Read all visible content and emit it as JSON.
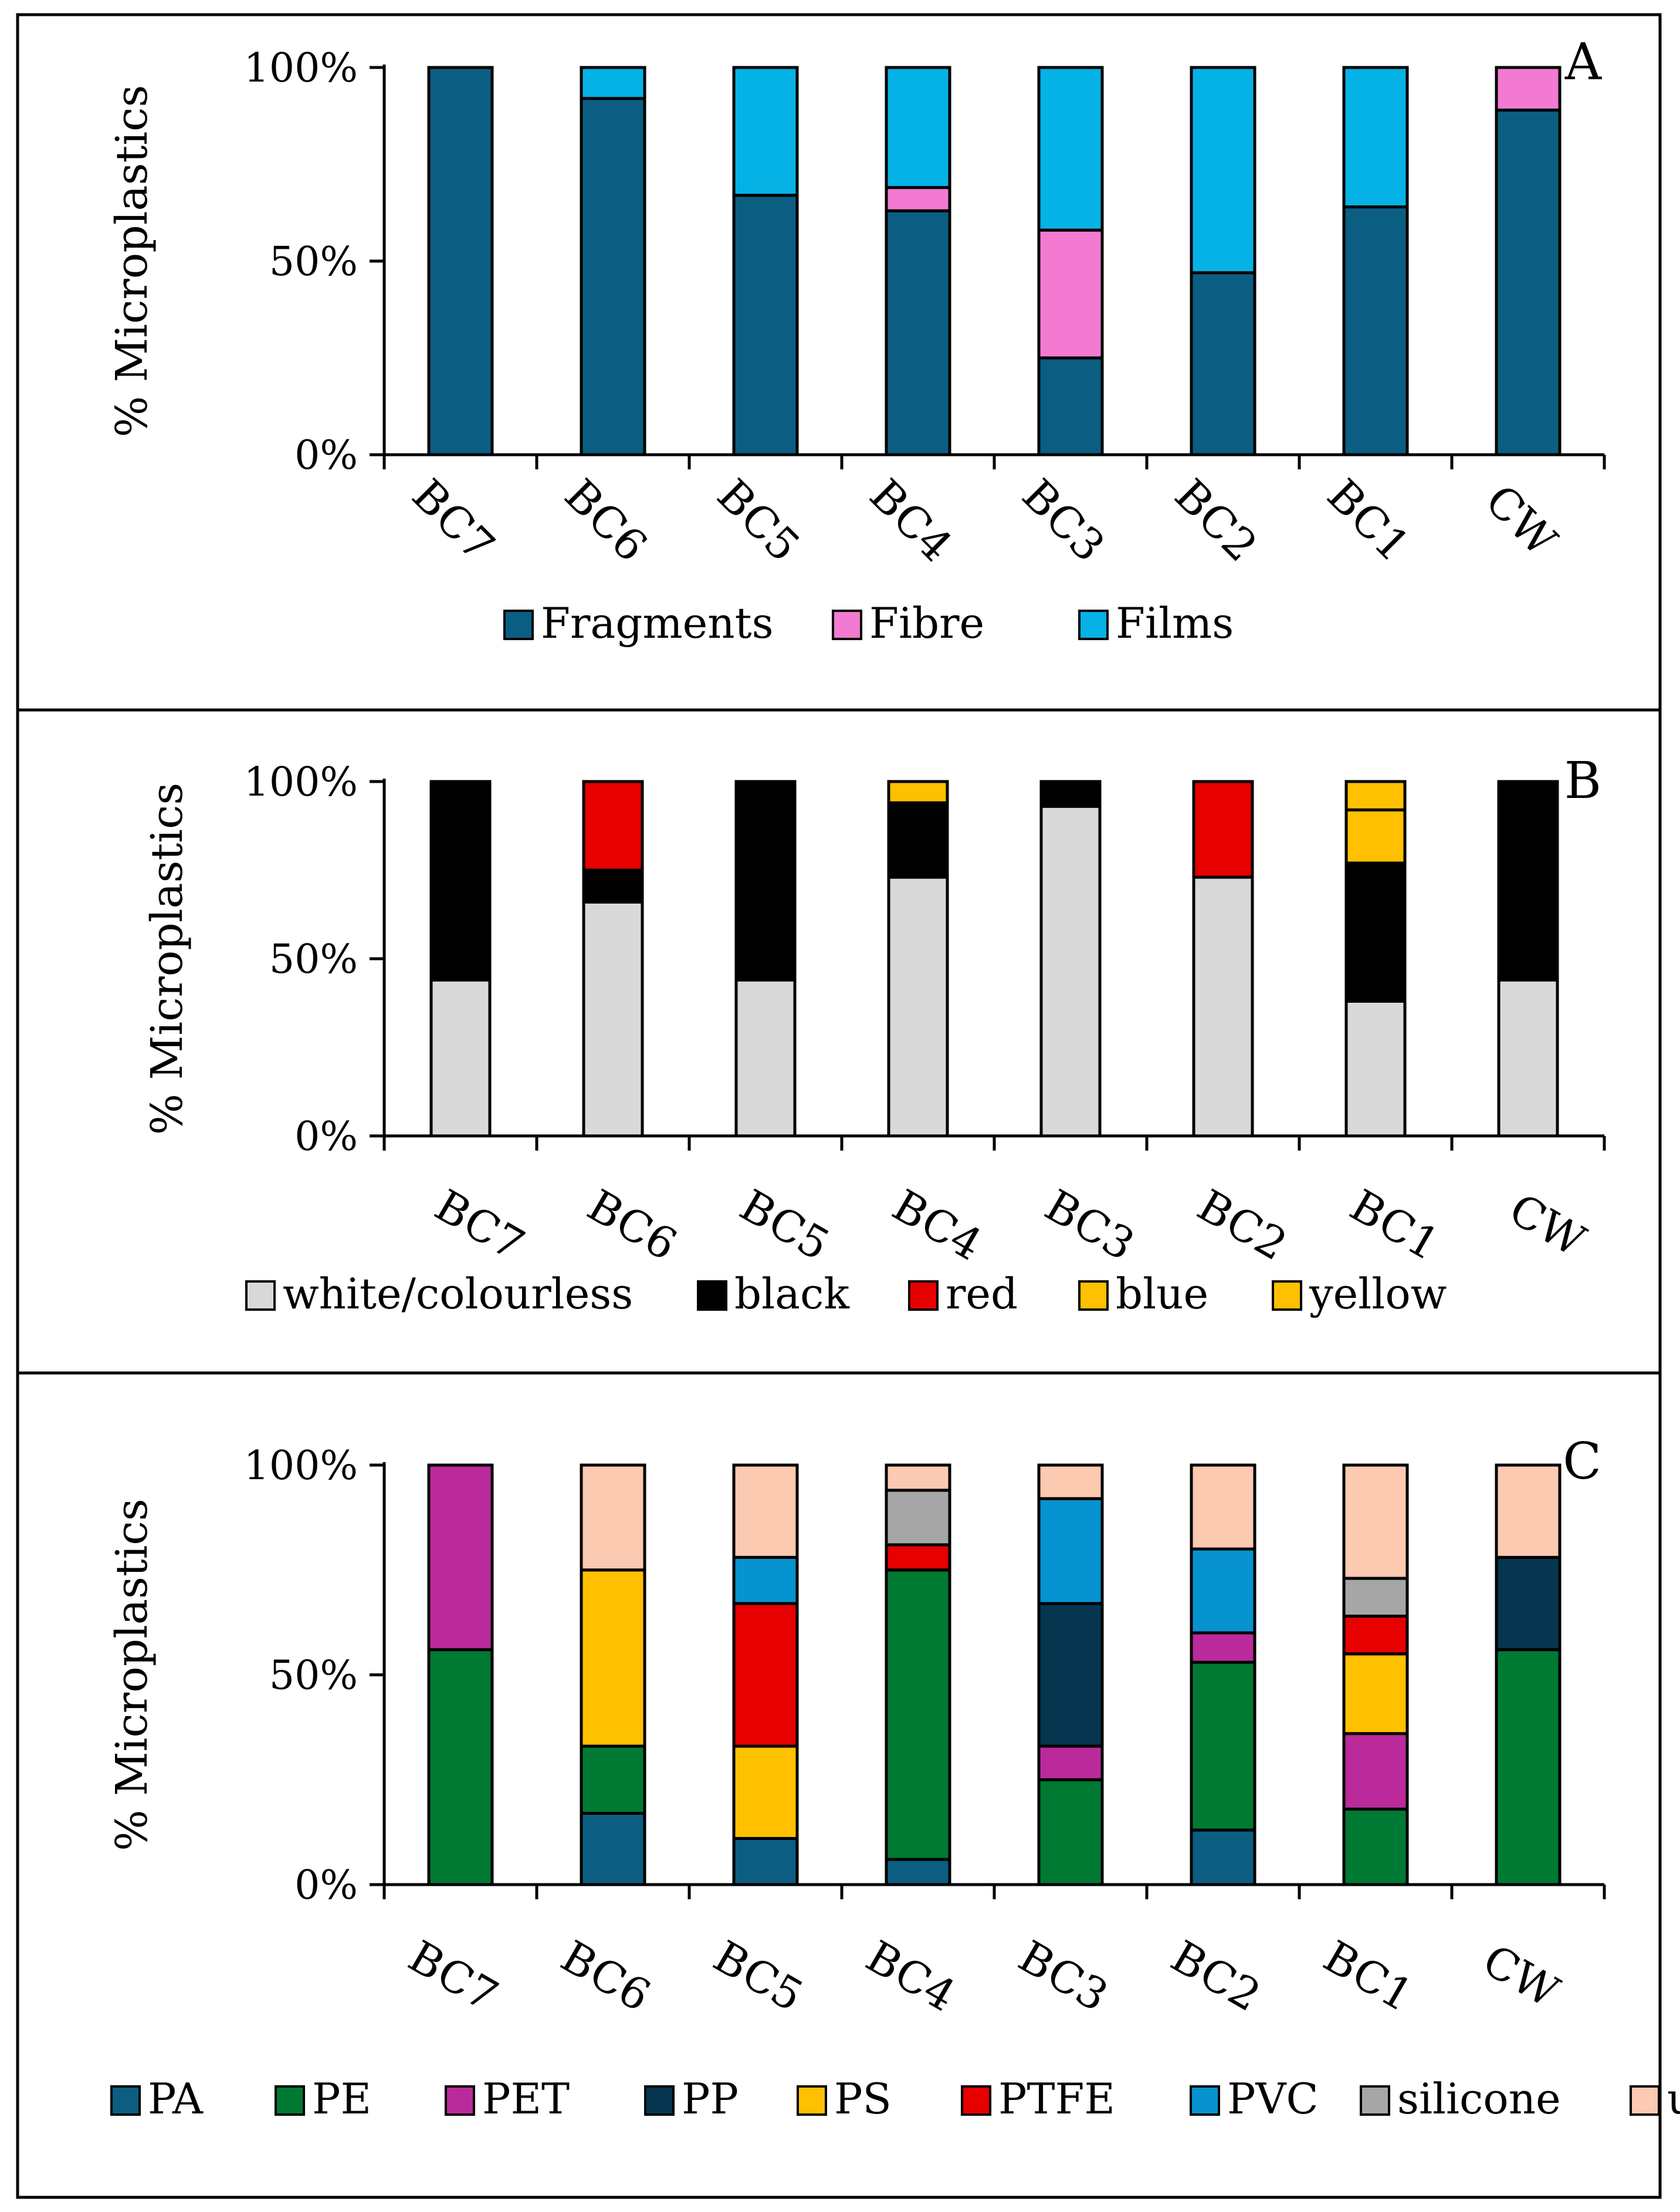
{
  "figure": {
    "y_axis_label": "% Microplastics",
    "y_ticks": [
      "0%",
      "50%",
      "100%"
    ]
  },
  "chart_data": [
    {
      "type": "bar",
      "stacked": true,
      "panel_letter": "A",
      "title": "",
      "xlabel": "",
      "ylabel": "% Microplastics",
      "ylim": [
        0,
        100
      ],
      "categories": [
        "BC7",
        "BC6",
        "BC5",
        "BC4",
        "BC3",
        "BC2",
        "BC1",
        "CW"
      ],
      "series": [
        {
          "name": "Fragments",
          "color": "#0b5e82",
          "values": [
            100,
            92,
            67,
            63,
            25,
            47,
            64,
            89
          ]
        },
        {
          "name": "Fibre",
          "color": "#f37ad1",
          "values": [
            0,
            0,
            0,
            6,
            33,
            0,
            0,
            11
          ]
        },
        {
          "name": "Films",
          "color": "#05b2e6",
          "values": [
            0,
            8,
            33,
            31,
            42,
            53,
            36,
            0
          ]
        }
      ]
    },
    {
      "type": "bar",
      "stacked": true,
      "panel_letter": "B",
      "title": "",
      "xlabel": "",
      "ylabel": "% Microplastics",
      "ylim": [
        0,
        100
      ],
      "categories": [
        "BC7",
        "BC6",
        "BC5",
        "BC4",
        "BC3",
        "BC2",
        "BC1",
        "CW"
      ],
      "series": [
        {
          "name": "white/colourless",
          "color": "#d9d9d9",
          "values": [
            44,
            66,
            44,
            73,
            93,
            73,
            38,
            44
          ]
        },
        {
          "name": "black",
          "color": "#000000",
          "values": [
            56,
            9,
            56,
            21,
            7,
            0,
            39,
            56
          ]
        },
        {
          "name": "red",
          "color": "#e60000",
          "values": [
            0,
            25,
            0,
            0,
            0,
            27,
            0,
            0
          ]
        },
        {
          "name": "blue",
          "color": "#ffc000",
          "values": [
            0,
            0,
            0,
            0,
            0,
            0,
            15,
            0
          ]
        },
        {
          "name": "yellow",
          "color": "#ffc000",
          "values": [
            0,
            0,
            0,
            6,
            0,
            0,
            8,
            0
          ]
        }
      ]
    },
    {
      "type": "bar",
      "stacked": true,
      "panel_letter": "C",
      "title": "",
      "xlabel": "",
      "ylabel": "% Microplastics",
      "ylim": [
        0,
        100
      ],
      "categories": [
        "BC7",
        "BC6",
        "BC5",
        "BC4",
        "BC3",
        "BC2",
        "BC1",
        "CW"
      ],
      "series": [
        {
          "name": "PA",
          "color": "#0b5e82",
          "values": [
            0,
            17,
            11,
            6,
            0,
            13,
            0,
            0
          ]
        },
        {
          "name": "PE",
          "color": "#007a33",
          "values": [
            56,
            16,
            0,
            69,
            25,
            40,
            18,
            56
          ]
        },
        {
          "name": "PET",
          "color": "#bb2a9a",
          "values": [
            44,
            0,
            0,
            0,
            8,
            7,
            18,
            0
          ]
        },
        {
          "name": "PP",
          "color": "#063550",
          "values": [
            0,
            0,
            0,
            0,
            34,
            0,
            0,
            22
          ]
        },
        {
          "name": "PS",
          "color": "#ffc000",
          "values": [
            0,
            42,
            22,
            0,
            0,
            0,
            19,
            0
          ]
        },
        {
          "name": "PTFE",
          "color": "#e60000",
          "values": [
            0,
            0,
            34,
            6,
            0,
            0,
            9,
            0
          ]
        },
        {
          "name": "PVC",
          "color": "#0693cf",
          "values": [
            0,
            0,
            11,
            0,
            25,
            20,
            0,
            0
          ]
        },
        {
          "name": "silicone",
          "color": "#a6a6a6",
          "values": [
            0,
            0,
            0,
            13,
            0,
            0,
            9,
            0
          ]
        },
        {
          "name": "unidentified",
          "color": "#fcc9b1",
          "values": [
            0,
            25,
            22,
            6,
            8,
            20,
            27,
            22
          ]
        }
      ]
    }
  ]
}
